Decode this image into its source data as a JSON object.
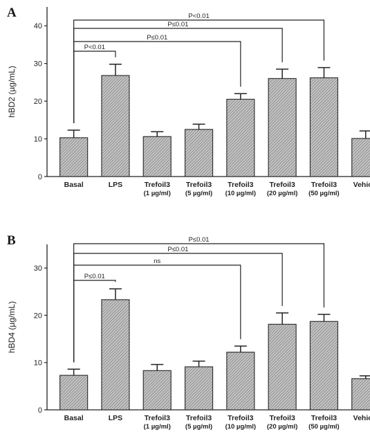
{
  "chart_data": [
    {
      "type": "bar",
      "panel": "A",
      "ylabel": "hBD2 (µg/mL)",
      "ylim": [
        0,
        45
      ],
      "yticks": [
        0,
        10,
        20,
        30,
        40
      ],
      "categories": [
        [
          "Basal"
        ],
        [
          "LPS"
        ],
        [
          "Trefoil3",
          "(1 µg/ml)"
        ],
        [
          "Trefoil3",
          "(5 µg/ml)"
        ],
        [
          "Trefoil3",
          "(10 µg/ml)"
        ],
        [
          "Trefoil3",
          "(20 µg/ml)"
        ],
        [
          "Trefoil3",
          "(50 µg/ml)"
        ],
        [
          "Vehicle"
        ]
      ],
      "values": [
        10.3,
        26.8,
        10.6,
        12.5,
        20.5,
        26.0,
        26.2,
        10.1
      ],
      "errors": [
        2.0,
        3.0,
        1.3,
        1.4,
        1.5,
        2.5,
        2.7,
        2.0
      ],
      "significance": [
        {
          "from": 0,
          "to": 1,
          "label": "P<0.01"
        },
        {
          "from": 0,
          "to": 4,
          "label": "P≤0.01"
        },
        {
          "from": 0,
          "to": 5,
          "label": "P≤0.01"
        },
        {
          "from": 0,
          "to": 6,
          "label": "P<0.01"
        }
      ]
    },
    {
      "type": "bar",
      "panel": "B",
      "ylabel": "hBD4 (µg/mL)",
      "ylim": [
        0,
        35
      ],
      "yticks": [
        0,
        10,
        20,
        30
      ],
      "categories": [
        [
          "Basal"
        ],
        [
          "LPS"
        ],
        [
          "Trefoil3",
          "(1 µg/ml)"
        ],
        [
          "Trefoil3",
          "(5 µg/ml)"
        ],
        [
          "Trefoil3",
          "(10 µg/ml)"
        ],
        [
          "Trefoil3",
          "(20 µg/ml)"
        ],
        [
          "Trefoil3",
          "(50 µg/ml)"
        ],
        [
          "Vehicle"
        ]
      ],
      "values": [
        7.3,
        23.3,
        8.3,
        9.1,
        12.2,
        18.1,
        18.7,
        6.6
      ],
      "errors": [
        1.3,
        2.3,
        1.3,
        1.2,
        1.3,
        2.4,
        1.5,
        0.6
      ],
      "significance": [
        {
          "from": 0,
          "to": 1,
          "label": "P≤0.01"
        },
        {
          "from": 0,
          "to": 4,
          "label": "ns"
        },
        {
          "from": 0,
          "to": 5,
          "label": "P≤0.01"
        },
        {
          "from": 0,
          "to": 6,
          "label": "P≤0.01"
        }
      ]
    }
  ]
}
